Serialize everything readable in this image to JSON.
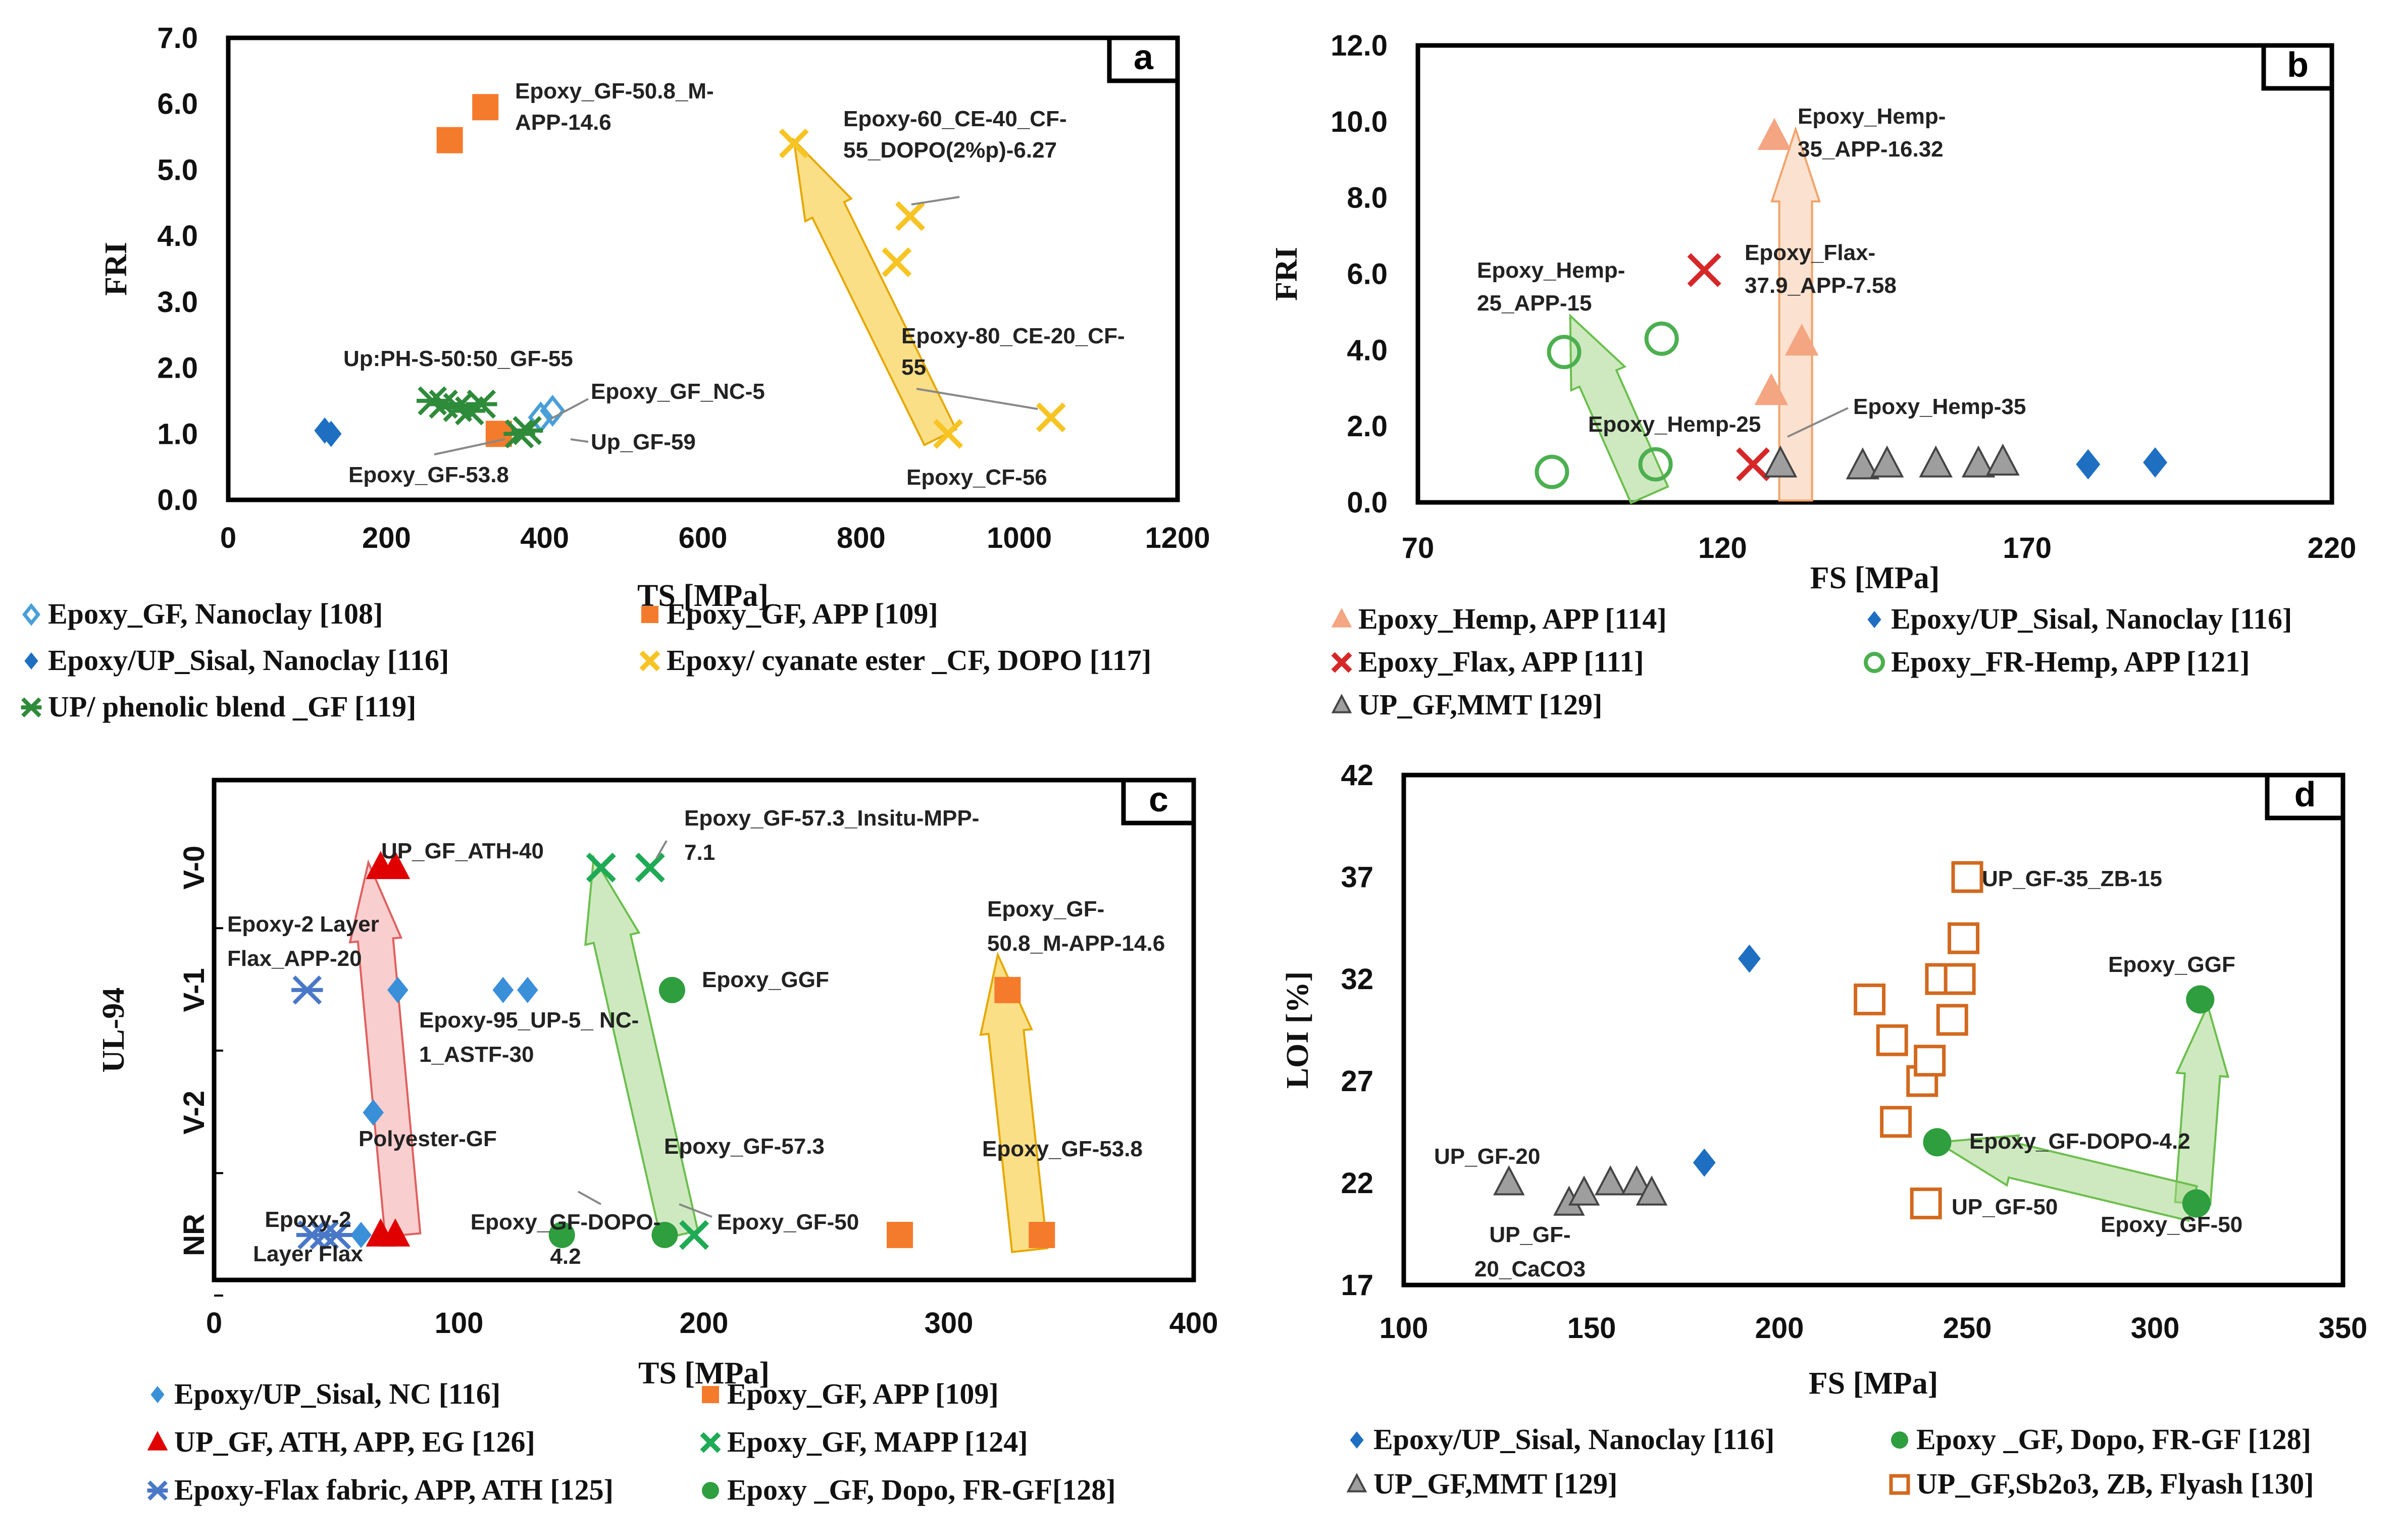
{
  "chart_data": [
    {
      "panel": "a",
      "type": "scatter",
      "xlabel": "TS [MPa]",
      "ylabel": "FRI",
      "xlim": [
        0,
        1200
      ],
      "ylim": [
        0,
        7
      ],
      "xticks": [
        "0",
        "200",
        "400",
        "600",
        "800",
        "1000",
        "1200"
      ],
      "yticks": [
        "0.0",
        "1.0",
        "2.0",
        "3.0",
        "4.0",
        "5.0",
        "6.0",
        "7.0"
      ],
      "series": [
        {
          "name": "Epoxy_GF, Nanoclay [108]",
          "color": "#4a9fd8",
          "marker": "diamond-open",
          "points": [
            [
              395,
              1.25
            ],
            [
              410,
              1.35
            ]
          ]
        },
        {
          "name": "Epoxy_GF, APP [109]",
          "color": "#f47b2b",
          "marker": "square",
          "points": [
            [
              280,
              5.45
            ],
            [
              325,
              5.95
            ],
            [
              342,
              1.0
            ]
          ]
        },
        {
          "name": "Epoxy/UP_Sisal, Nanoclay [116]",
          "color": "#1e6fc2",
          "marker": "diamond",
          "points": [
            [
              122,
              1.05
            ],
            [
              130,
              1.0
            ]
          ]
        },
        {
          "name": "Epoxy/ cyanate ester _CF, DOPO [117]",
          "color": "#f7c424",
          "marker": "x",
          "points": [
            [
              715,
              5.4
            ],
            [
              845,
              3.6
            ],
            [
              862,
              4.3
            ],
            [
              910,
              1.0
            ],
            [
              1040,
              1.25
            ]
          ]
        },
        {
          "name": "UP/ phenolic blend _GF [119]",
          "color": "#2e8b3a",
          "marker": "star",
          "points": [
            [
              258,
              1.5
            ],
            [
              272,
              1.45
            ],
            [
              290,
              1.4
            ],
            [
              305,
              1.35
            ],
            [
              320,
              1.45
            ],
            [
              368,
              1.0
            ],
            [
              378,
              1.05
            ]
          ]
        }
      ],
      "annotations": [
        {
          "lines": [
            "Epoxy_GF-50.8_M-",
            "APP-14.6"
          ]
        },
        {
          "lines": [
            "Epoxy-60_CE-40_CF-",
            "55_DOPO(2%p)-6.27"
          ]
        },
        {
          "lines": [
            "Epoxy-80_CE-20_CF-",
            "55"
          ]
        },
        {
          "lines": [
            "Up:PH-S-50:50_GF-55"
          ]
        },
        {
          "lines": [
            "Epoxy_GF_NC-5"
          ]
        },
        {
          "lines": [
            "Up_GF-59"
          ]
        },
        {
          "lines": [
            "Epoxy_GF-53.8"
          ]
        },
        {
          "lines": [
            "Epoxy_CF-56"
          ]
        }
      ]
    },
    {
      "panel": "b",
      "type": "scatter",
      "xlabel": "FS [MPa]",
      "ylabel": "FRI",
      "xlim": [
        70,
        220
      ],
      "ylim": [
        0,
        12
      ],
      "xticks": [
        "70",
        "120",
        "170",
        "220"
      ],
      "yticks": [
        "0.0",
        "2.0",
        "4.0",
        "6.0",
        "8.0",
        "10.0",
        "12.0"
      ],
      "series": [
        {
          "name": "Epoxy_Hemp, APP [114]",
          "color": "#f4a582",
          "marker": "triangle",
          "points": [
            [
              128,
              2.9
            ],
            [
              128.5,
              9.6
            ],
            [
              133,
              4.2
            ]
          ]
        },
        {
          "name": "Epoxy/UP_Sisal, Nanoclay [116]",
          "color": "#1e6fc2",
          "marker": "diamond",
          "points": [
            [
              180,
              1.0
            ],
            [
              191,
              1.05
            ]
          ]
        },
        {
          "name": "Epoxy_Flax, APP [111]",
          "color": "#d62728",
          "marker": "x",
          "points": [
            [
              117,
              6.1
            ],
            [
              125,
              1.0
            ]
          ]
        },
        {
          "name": "Epoxy_FR-Hemp, APP [121]",
          "color": "#4caf50",
          "marker": "circle-open",
          "points": [
            [
              92,
              0.8
            ],
            [
              94,
              3.95
            ],
            [
              109,
              1.0
            ],
            [
              110,
              4.3
            ]
          ]
        },
        {
          "name": "UP_GF,MMT [129]",
          "color": "#9e9e9e",
          "marker": "triangle",
          "points": [
            [
              129.5,
              1.0
            ],
            [
              143,
              0.95
            ],
            [
              147,
              1.0
            ],
            [
              155,
              1.0
            ],
            [
              162,
              1.0
            ],
            [
              166,
              1.05
            ]
          ]
        }
      ],
      "annotations": [
        {
          "lines": [
            "Epoxy_Hemp-",
            "35_APP-16.32"
          ]
        },
        {
          "lines": [
            "Epoxy_Flax-",
            "37.9_APP-7.58"
          ]
        },
        {
          "lines": [
            "Epoxy_Hemp-",
            "25_APP-15"
          ]
        },
        {
          "lines": [
            "Epoxy_Hemp-25"
          ]
        },
        {
          "lines": [
            "Epoxy_Hemp-35"
          ]
        }
      ]
    },
    {
      "panel": "c",
      "type": "scatter",
      "xlabel": "TS [MPa]",
      "ylabel": "UL-94",
      "xlim": [
        0,
        400
      ],
      "xticks": [
        "0",
        "100",
        "200",
        "300",
        "400"
      ],
      "yticks": [
        "NR",
        "V-2",
        "V-1",
        "V-0"
      ],
      "series": [
        {
          "name": "Epoxy/UP_Sisal, NC [116]",
          "color": "#3a8fd9",
          "marker": "diamond",
          "points": [
            [
              60,
              "NR"
            ],
            [
              65,
              "V-2"
            ],
            [
              75,
              "V-1"
            ],
            [
              118,
              "V-1"
            ],
            [
              128,
              "V-1"
            ]
          ]
        },
        {
          "name": "Epoxy_GF, APP [109]",
          "color": "#f47b2b",
          "marker": "square",
          "points": [
            [
              280,
              "NR"
            ],
            [
              338,
              "NR"
            ],
            [
              324,
              "V-1"
            ]
          ]
        },
        {
          "name": "UP_GF, ATH, APP, EG [126]",
          "color": "#e00000",
          "marker": "triangle",
          "points": [
            [
              68,
              "V-0"
            ],
            [
              74,
              "V-0"
            ],
            [
              68,
              "NR"
            ],
            [
              74,
              "NR"
            ]
          ]
        },
        {
          "name": "Epoxy_GF, MAPP [124]",
          "color": "#1faa55",
          "marker": "x",
          "points": [
            [
              158,
              "V-0"
            ],
            [
              178,
              "V-0"
            ],
            [
              196,
              "NR"
            ]
          ]
        },
        {
          "name": "Epoxy-Flax fabric, APP, ATH [125]",
          "color": "#4a78c8",
          "marker": "star",
          "points": [
            [
              38,
              "V-1"
            ],
            [
              40,
              "NR"
            ],
            [
              45,
              "NR"
            ],
            [
              50,
              "NR"
            ]
          ]
        },
        {
          "name": "Epoxy _GF, Dopo, FR-GF[128]",
          "color": "#2e9e3e",
          "marker": "circle",
          "points": [
            [
              142,
              "NR"
            ],
            [
              184,
              "NR"
            ],
            [
              187,
              "V-1"
            ]
          ]
        }
      ],
      "annotations": [
        {
          "lines": [
            "UP_GF_ATH-40"
          ]
        },
        {
          "lines": [
            "Epoxy_GF-57.3_Insitu-MPP-",
            "7.1"
          ]
        },
        {
          "lines": [
            "Epoxy_GF-",
            "50.8_M-APP-14.6"
          ]
        },
        {
          "lines": [
            "Epoxy-2 Layer",
            "Flax_APP-20"
          ]
        },
        {
          "lines": [
            "Epoxy_GGF"
          ]
        },
        {
          "lines": [
            "Epoxy-95_UP-5_ NC-",
            "1_ASTF-30"
          ]
        },
        {
          "lines": [
            "Polyester-GF"
          ]
        },
        {
          "lines": [
            "Epoxy_GF-57.3"
          ]
        },
        {
          "lines": [
            "Epoxy_GF-53.8"
          ]
        },
        {
          "lines": [
            "Epoxy-2",
            "Layer Flax"
          ]
        },
        {
          "lines": [
            "Epoxy_GF-DOPO-",
            "4.2"
          ]
        },
        {
          "lines": [
            "Epoxy_GF-50"
          ]
        }
      ]
    },
    {
      "panel": "d",
      "type": "scatter",
      "xlabel": "FS [MPa]",
      "ylabel": "LOI [%]",
      "xlim": [
        100,
        350
      ],
      "ylim": [
        17,
        42
      ],
      "xticks": [
        "100",
        "150",
        "200",
        "250",
        "300",
        "350"
      ],
      "yticks": [
        "17",
        "22",
        "27",
        "32",
        "37",
        "42"
      ],
      "series": [
        {
          "name": "Epoxy/UP_Sisal, Nanoclay [116]",
          "color": "#1e6fc2",
          "marker": "diamond",
          "points": [
            [
              180,
              23
            ],
            [
              192,
              33
            ]
          ]
        },
        {
          "name": "Epoxy _GF, Dopo, FR-GF [128]",
          "color": "#2e9e3e",
          "marker": "circle",
          "points": [
            [
              242,
              24
            ],
            [
              311,
              21
            ],
            [
              312,
              31
            ]
          ]
        },
        {
          "name": "UP_GF,MMT [129]",
          "color": "#9e9e9e",
          "marker": "triangle",
          "points": [
            [
              128,
              22
            ],
            [
              144,
              21
            ],
            [
              148,
              21.5
            ],
            [
              155,
              22
            ],
            [
              162,
              22
            ],
            [
              166,
              21.5
            ]
          ]
        },
        {
          "name": "UP_GF,Sb2o3, ZB, Flyash [130]",
          "color": "#d2691e",
          "marker": "square-open",
          "points": [
            [
              224,
              31
            ],
            [
              230,
              29
            ],
            [
              231,
              25
            ],
            [
              238,
              27
            ],
            [
              240,
              28
            ],
            [
              243,
              32
            ],
            [
              246,
              30
            ],
            [
              248,
              32
            ],
            [
              249,
              34
            ],
            [
              250,
              37
            ],
            [
              239,
              21
            ]
          ]
        }
      ],
      "annotations": [
        {
          "lines": [
            "UP_GF-35_ZB-15"
          ]
        },
        {
          "lines": [
            "Epoxy_GGF"
          ]
        },
        {
          "lines": [
            "Epoxy_GF-DOPO-4.2"
          ]
        },
        {
          "lines": [
            "UP_GF-20"
          ]
        },
        {
          "lines": [
            "UP_GF-",
            "20_CaCO3"
          ]
        },
        {
          "lines": [
            "UP_GF-50"
          ]
        },
        {
          "lines": [
            "Epoxy_GF-50"
          ]
        }
      ]
    }
  ]
}
